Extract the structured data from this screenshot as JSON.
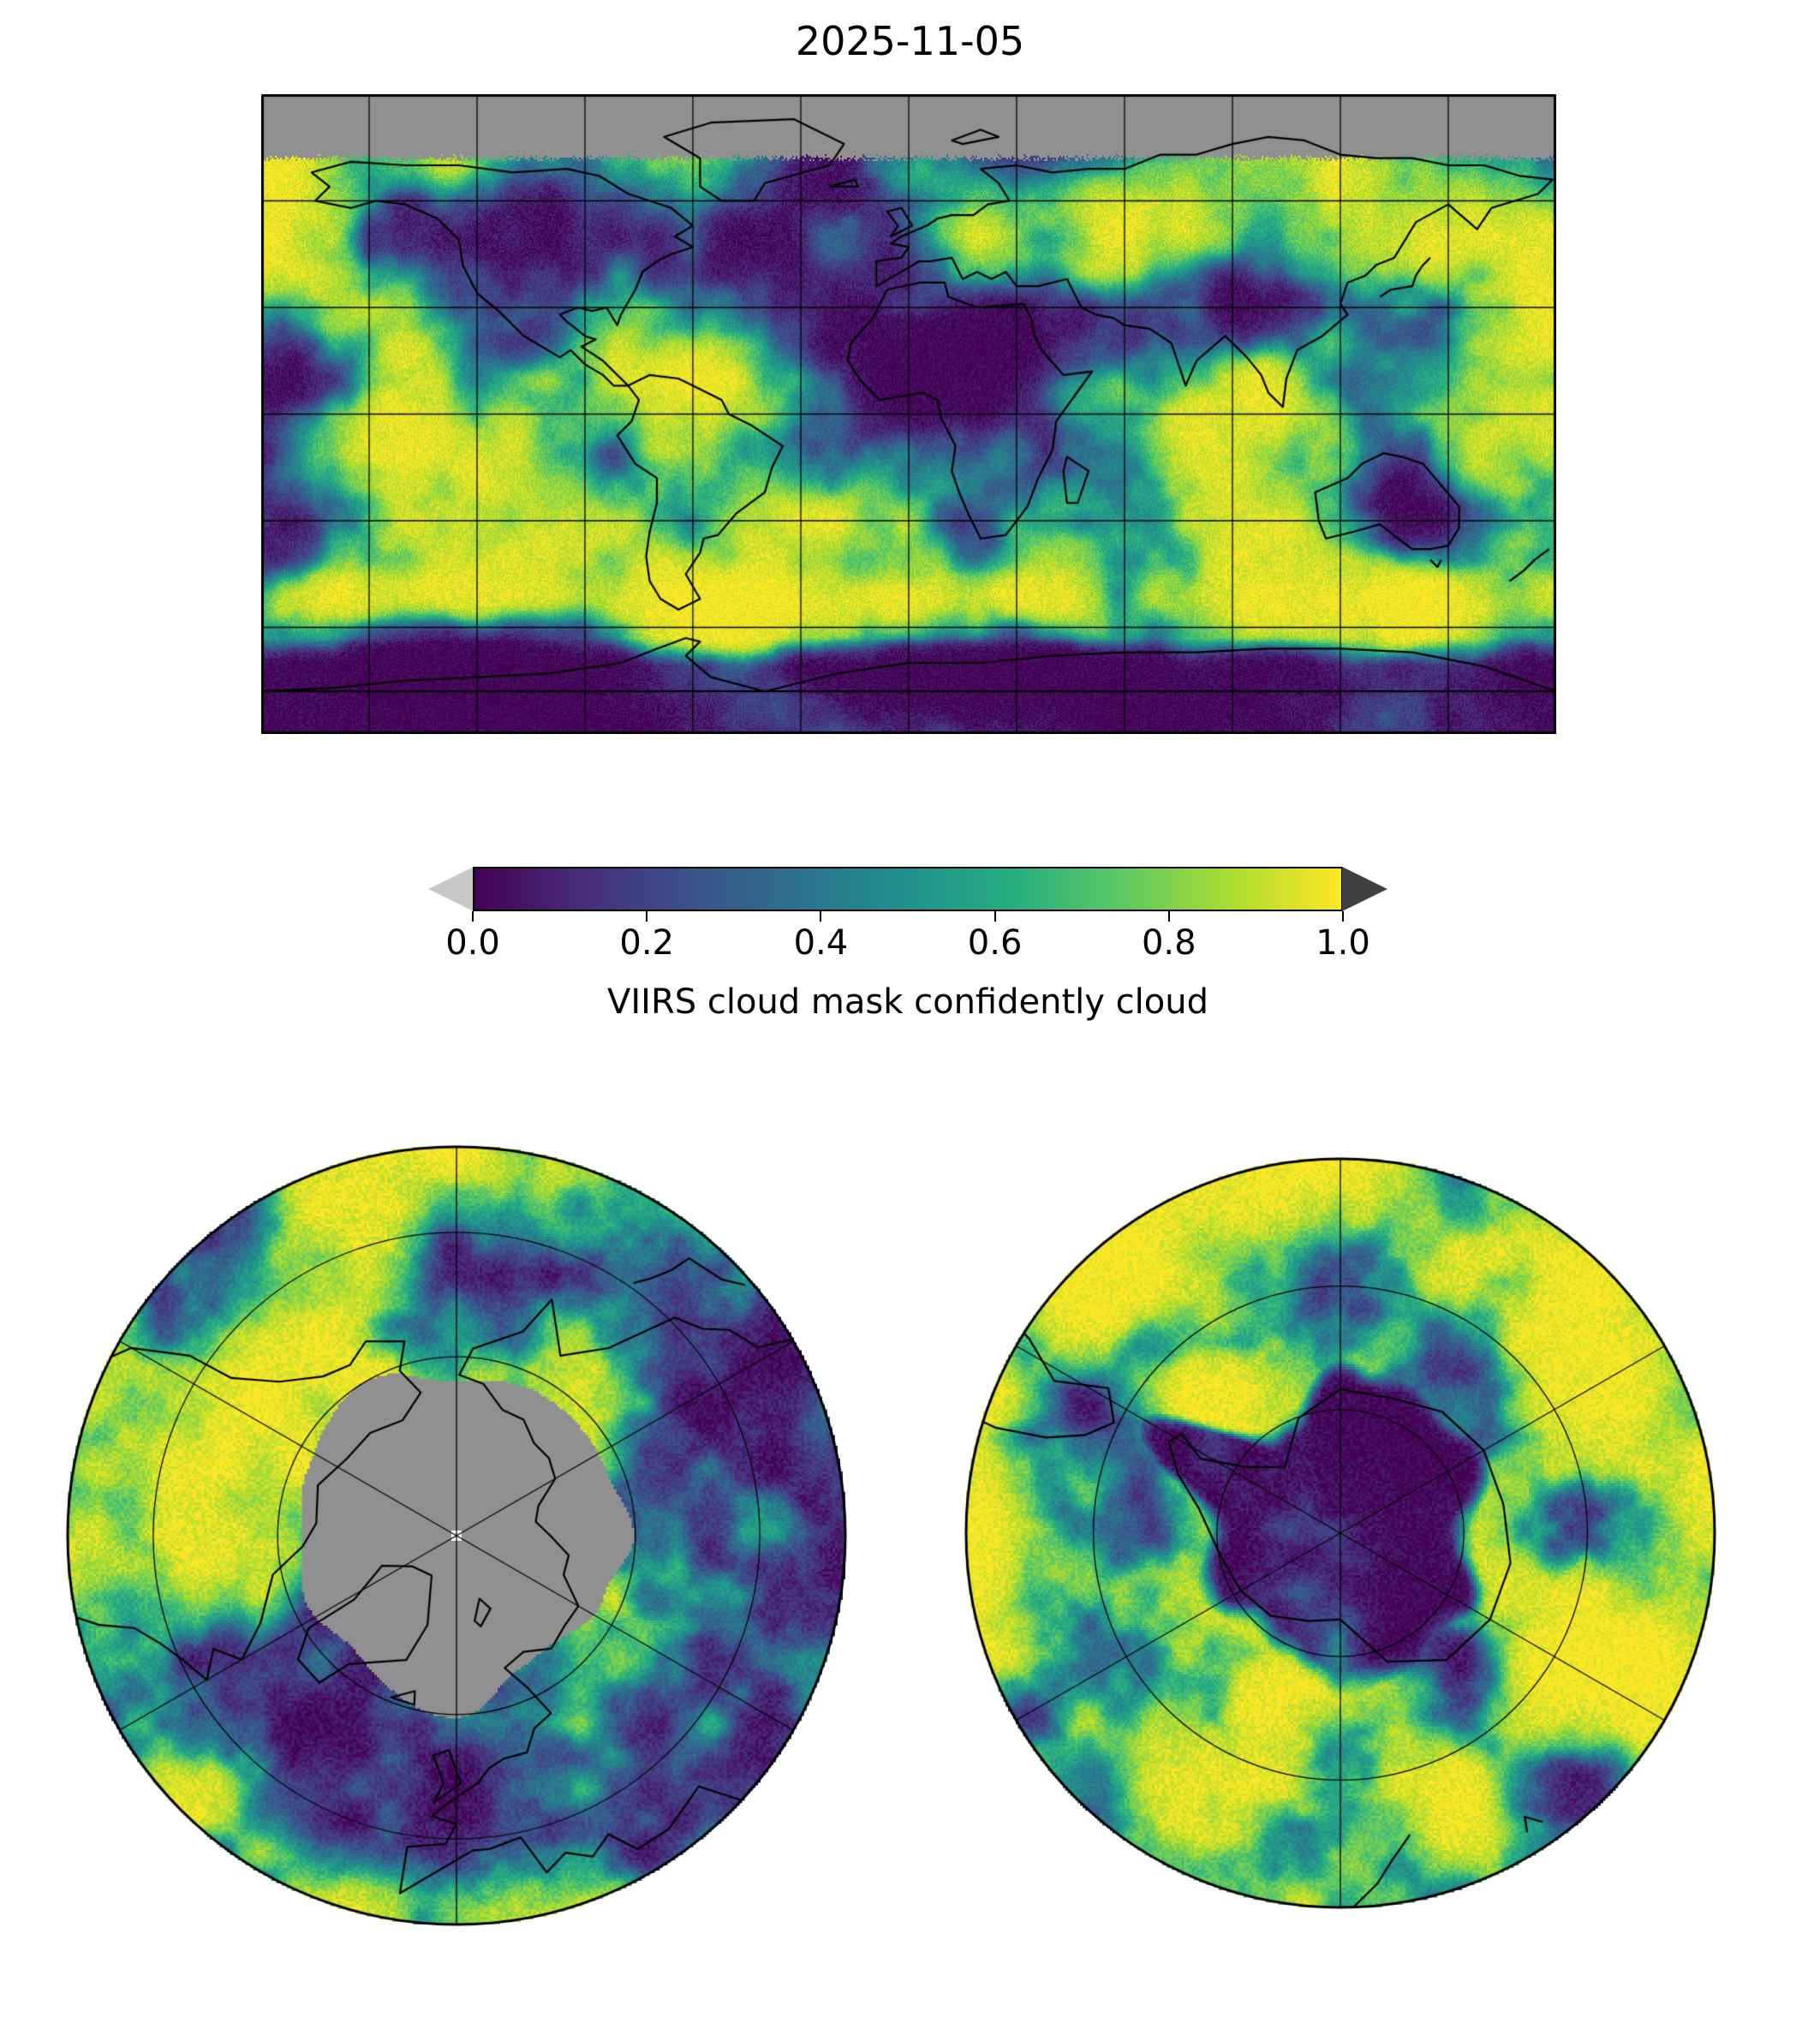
{
  "title": "2025-11-05",
  "colorbar": {
    "label": "VIIRS cloud mask confidently cloud",
    "ticks": [
      "0.0",
      "0.2",
      "0.4",
      "0.6",
      "0.8",
      "1.0"
    ]
  },
  "colors": {
    "viridis": [
      "#440154",
      "#472d7b",
      "#3b528b",
      "#2c728e",
      "#21918c",
      "#28ae80",
      "#5ec962",
      "#addc30",
      "#fde725"
    ],
    "no_data_gray": "#909090",
    "under_arrow": "#c8c8c8",
    "over_arrow": "#404040",
    "coastline": "#000000",
    "gridline": "#000000",
    "background": "#ffffff"
  },
  "chart_data": {
    "type": "heatmap",
    "title": "2025-11-05",
    "variable": "VIIRS cloud mask confidently cloud",
    "colormap": "viridis",
    "value_range": [
      0.0,
      1.0
    ],
    "colorbar_ticks": [
      0.0,
      0.2,
      0.4,
      0.6,
      0.8,
      1.0
    ],
    "colorbar_label": "VIIRS cloud mask confidently cloud",
    "colorbar_extend": "both",
    "legend_position": "horizontal, centered below global map",
    "grid": true,
    "panels": [
      {
        "name": "global-map",
        "projection": "equirectangular",
        "lon_range": [
          -180,
          180
        ],
        "lat_range": [
          -90,
          90
        ],
        "gridline_spacing_deg": 30,
        "coastlines": true,
        "notes": "Cloud fraction near 1.0 (yellow) over most oceans and Southern Ocean storm track; near 0.0 (dark purple) over North Africa/Arabia into central Asia, Australia, subtropical east Pacific and interior Antarctica; gray no-data band poleward of about 72N (polar night)."
      },
      {
        "name": "arctic-polar-map",
        "projection": "north-polar-azimuthal",
        "gridlines": "parallels and meridians every 30-60 deg",
        "coastlines": true,
        "notes": "Central gray disk of missing data around the North Pole (polar night); surrounding field mostly cloudy (yellow) with dark clear patches."
      },
      {
        "name": "antarctic-polar-map",
        "projection": "south-polar-azimuthal",
        "gridlines": "parallels and meridians every 30-60 deg",
        "coastlines": true,
        "notes": "Mostly cloudy (yellow) Southern Ocean; large clear (dark purple/blue) region over the Antarctic continent."
      }
    ]
  }
}
